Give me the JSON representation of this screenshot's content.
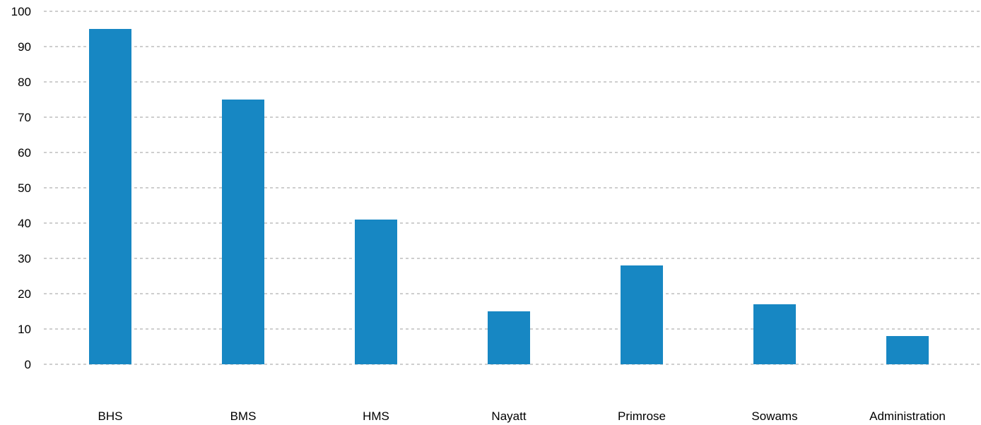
{
  "chart_data": {
    "type": "bar",
    "categories": [
      "BHS",
      "BMS",
      "HMS",
      "Nayatt",
      "Primrose",
      "Sowams",
      "Administration"
    ],
    "values": [
      95,
      75,
      41,
      15,
      28,
      17,
      8
    ],
    "title": "",
    "xlabel": "",
    "ylabel": "",
    "ylim": [
      0,
      100
    ],
    "yticks": [
      0,
      10,
      20,
      30,
      40,
      50,
      60,
      70,
      80,
      90,
      100
    ],
    "grid": true,
    "grid_style": "dashed",
    "legend": "none",
    "bar_color": "#1787c3",
    "grid_color": "#b0b0b0"
  }
}
